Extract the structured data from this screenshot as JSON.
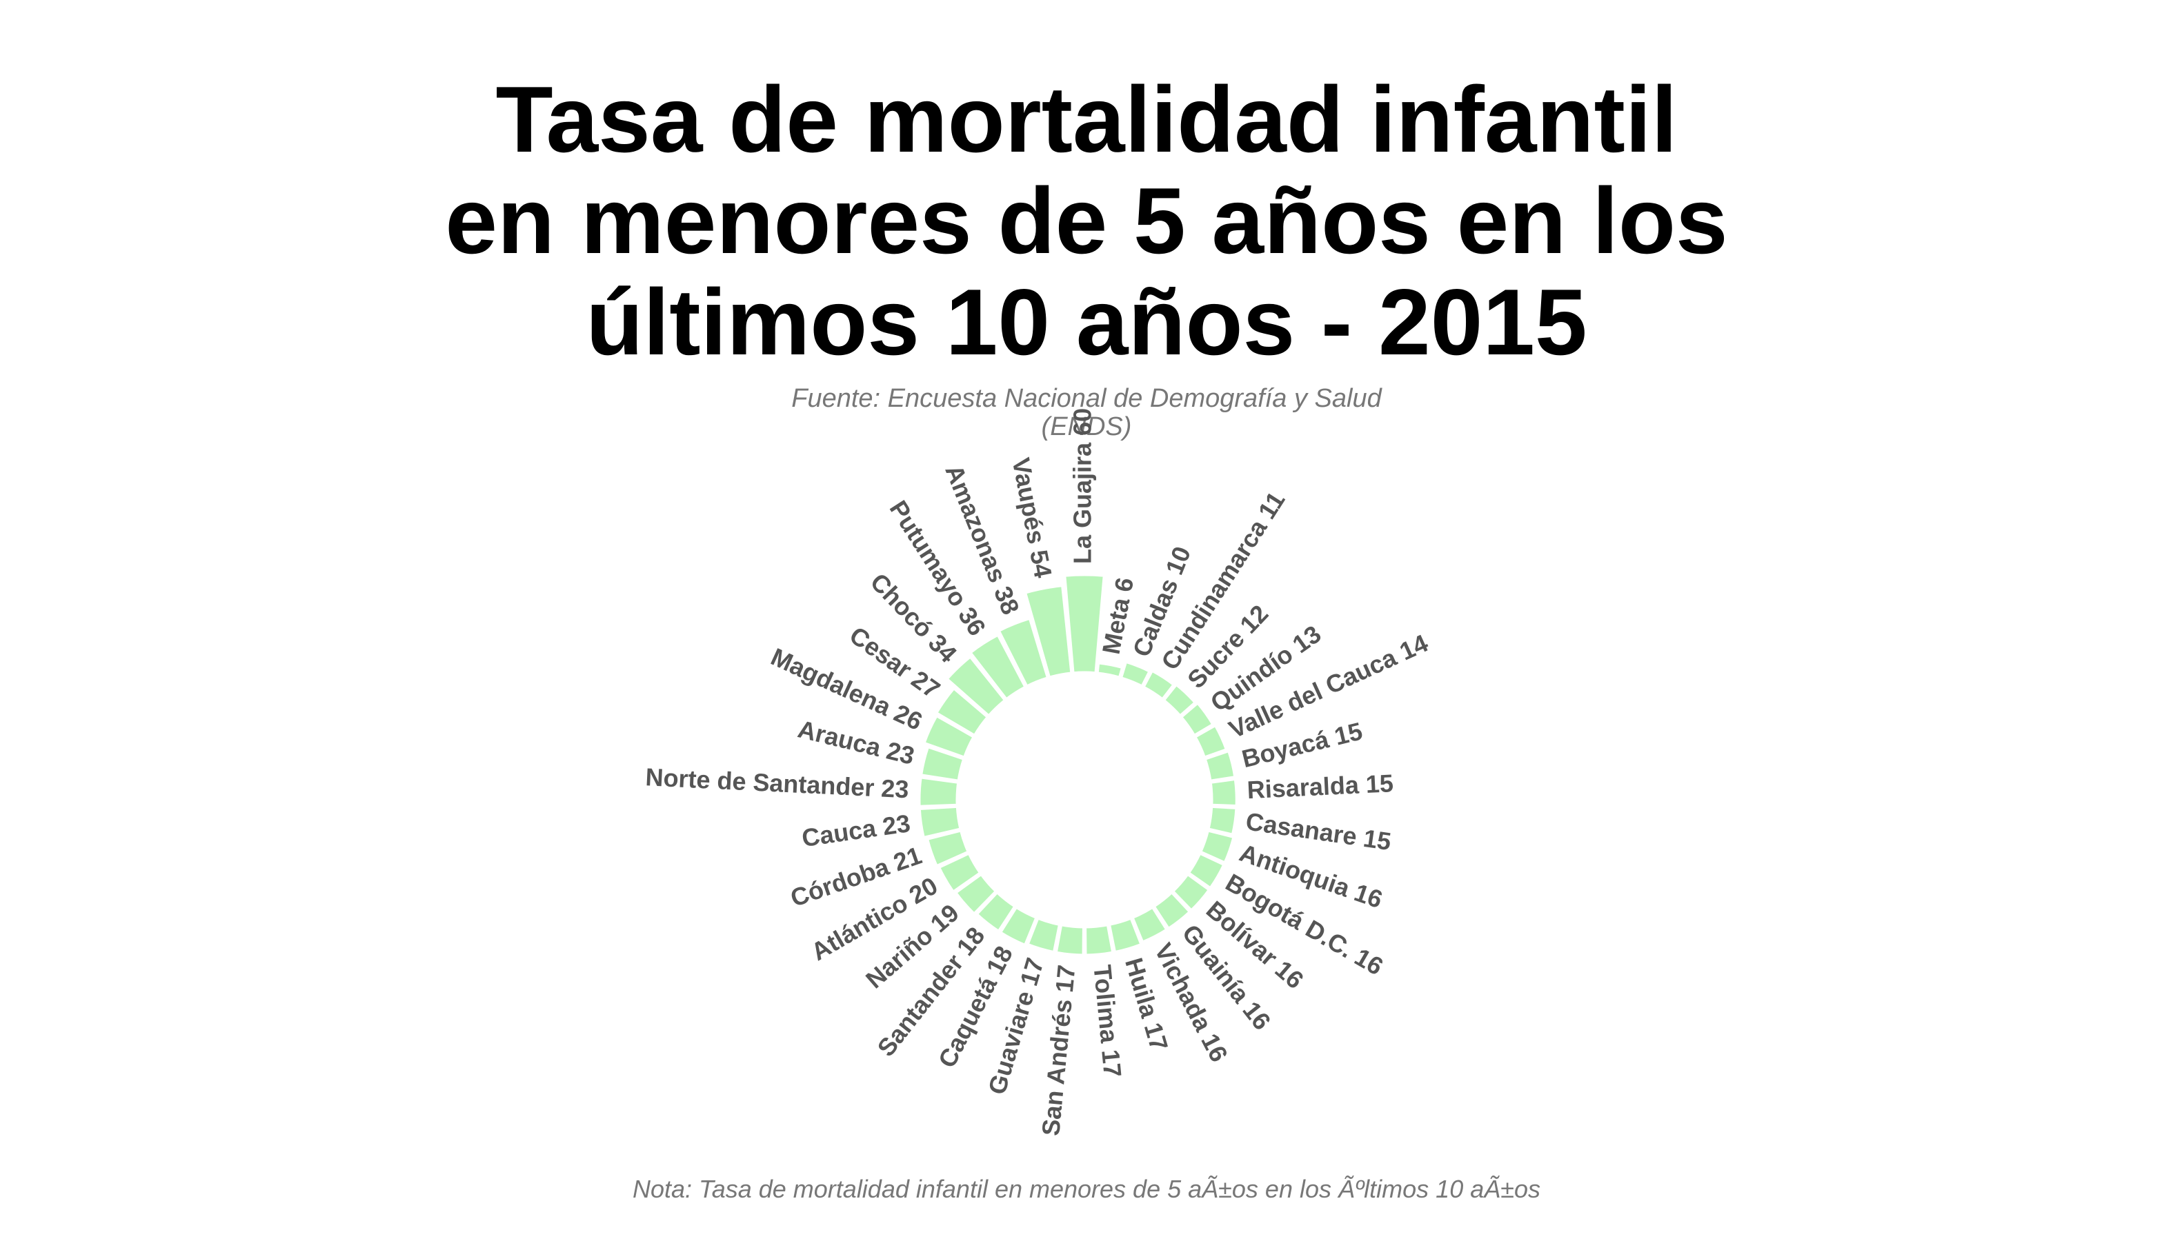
{
  "title_lines": [
    "Tasa de mortalidad infantil",
    "en menores de 5 años en los",
    "últimos 10 años - 2015"
  ],
  "subtitle_lines": [
    "Fuente: Encuesta Nacional de Demografía y Salud",
    "(ENDS)"
  ],
  "note": "Nota: Tasa de mortalidad infantil en menores de 5 aÃ±os en los Ãºltimos 10 aÃ±os",
  "colors": {
    "bar": "#b9f5b9",
    "bar_stroke": "#ffffff",
    "label": "#555555"
  },
  "chart_data": {
    "type": "bar",
    "subtype": "circular",
    "title": "Tasa de mortalidad infantil en menores de 5 años en los últimos 10 años - 2015",
    "subtitle": "Fuente: Encuesta Nacional de Demografía y Salud (ENDS)",
    "categories": [
      "La Guajira",
      "Meta",
      "Caldas",
      "Cundinamarca",
      "Sucre",
      "Quindío",
      "Valle del Cauca",
      "Boyacá",
      "Risaralda",
      "Casanare",
      "Antioquia",
      "Bogotá D.C.",
      "Bolívar",
      "Guainía",
      "Vichada",
      "Huila",
      "Tolima",
      "San Andrés",
      "Guaviare",
      "Caquetá",
      "Santander",
      "Nariño",
      "Atlántico",
      "Córdoba",
      "Cauca",
      "Norte de Santander",
      "Arauca",
      "Magdalena",
      "Cesar",
      "Chocó",
      "Putumayo",
      "Amazonas",
      "Vaupés"
    ],
    "values": [
      60,
      6,
      10,
      11,
      12,
      13,
      14,
      15,
      15,
      15,
      16,
      16,
      16,
      16,
      16,
      17,
      17,
      17,
      17,
      18,
      18,
      19,
      20,
      21,
      23,
      23,
      23,
      26,
      27,
      34,
      36,
      38,
      54
    ],
    "labels": [
      "La Guajira 60",
      "Meta 6",
      "Caldas 10",
      "Cundinamarca 11",
      "Sucre 12",
      "Quindío 13",
      "Valle del Cauca 14",
      "Boyacá 15",
      "Risaralda 15",
      "Casanare 15",
      "Antioquia 16",
      "Bogotá D.C. 16",
      "Bolívar 16",
      "Guainía 16",
      "Vichada 16",
      "Huila 17",
      "Tolima 17",
      "San Andrés 17",
      "Guaviare 17",
      "Caquetá 18",
      "Santander 18",
      "Nariño 19",
      "Atlántico 20",
      "Córdoba 21",
      "Cauca 23",
      "Norte de Santander 23",
      "Arauca 23",
      "Magdalena 26",
      "Cesar 27",
      "Chocó 34",
      "Putumayo 36",
      "Amazonas 38",
      "Vaupés 54"
    ],
    "direction": "clockwise from top",
    "grid": false,
    "legend": "none"
  }
}
